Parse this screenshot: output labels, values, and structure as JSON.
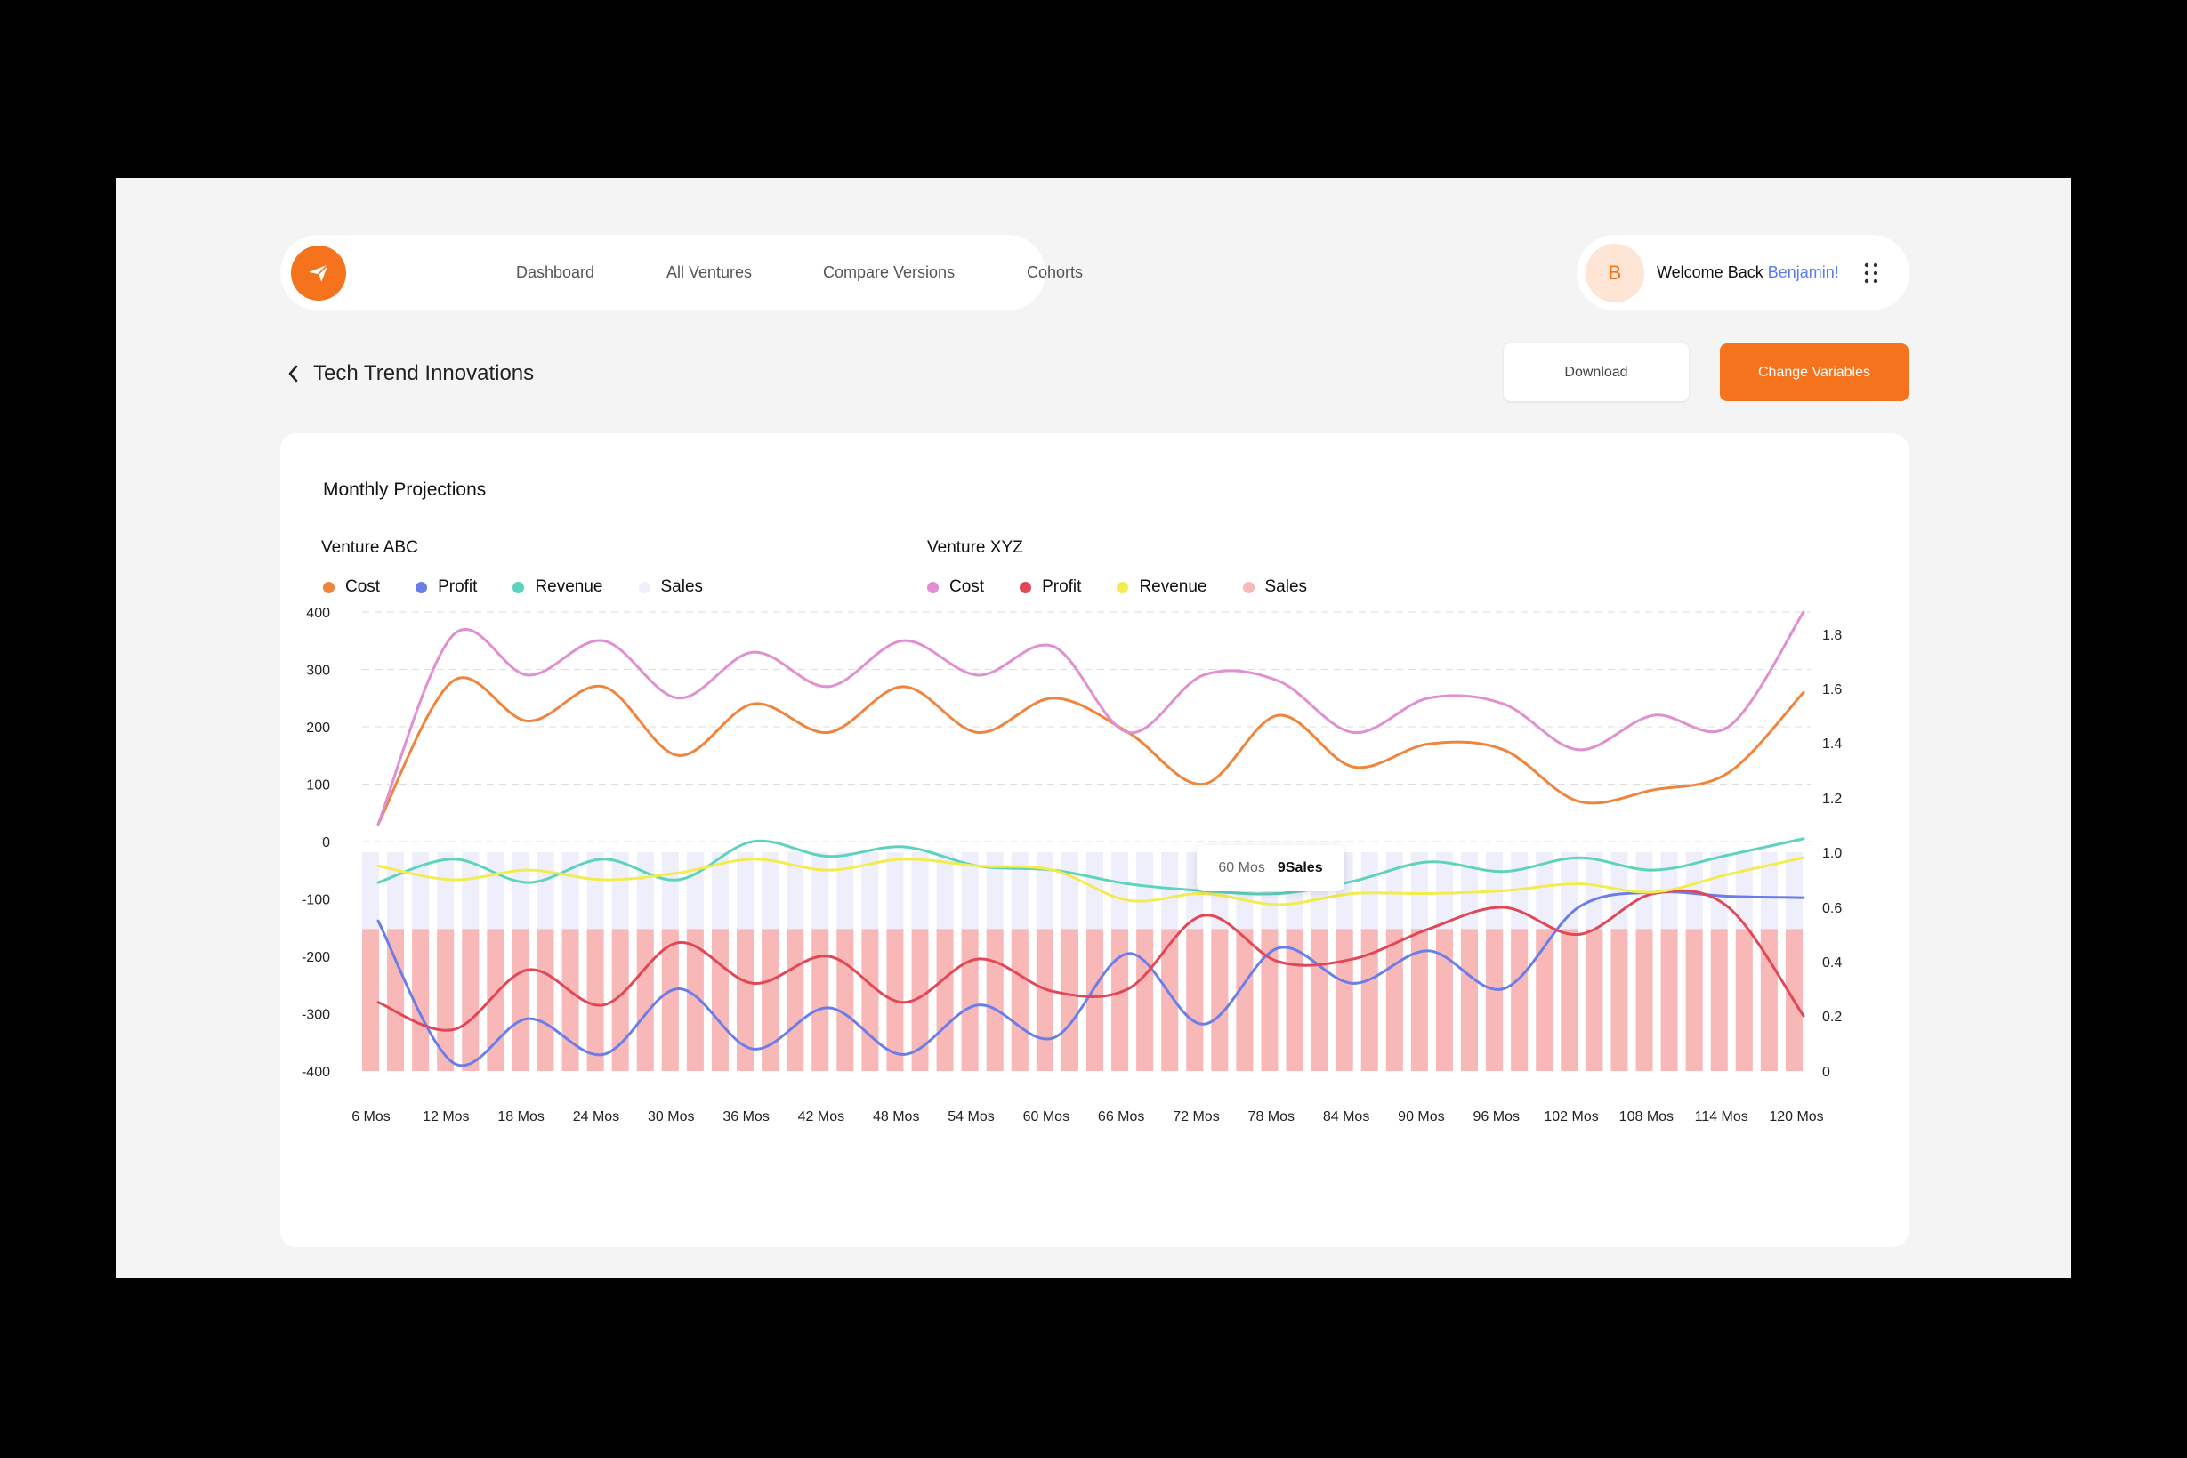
{
  "nav": {
    "items": [
      "Dashboard",
      "All Ventures",
      "Compare Versions",
      "Cohorts"
    ]
  },
  "user": {
    "initial": "B",
    "welcome": "Welcome Back ",
    "name": "Benjamin!"
  },
  "page": {
    "title": "Tech Trend Innovations",
    "download_label": "Download",
    "change_label": "Change Variables"
  },
  "card": {
    "title": "Monthly Projections"
  },
  "colors": {
    "accent": "#f5731c",
    "link": "#5b7cf5"
  },
  "tooltip": {
    "x": "60 Mos",
    "value": "9Sales"
  },
  "chart_data": {
    "type": "line",
    "title": "Monthly Projections",
    "x": [
      "6 Mos",
      "12 Mos",
      "18 Mos",
      "24 Mos",
      "30 Mos",
      "36 Mos",
      "42 Mos",
      "48 Mos",
      "54 Mos",
      "60 Mos",
      "66 Mos",
      "72 Mos",
      "78 Mos",
      "84 Mos",
      "90 Mos",
      "96 Mos",
      "102 Mos",
      "108 Mos",
      "114 Mos",
      "120 Mos"
    ],
    "ylim_left": [
      -400,
      400
    ],
    "yticks_left": [
      "400",
      "300",
      "200",
      "100",
      "0",
      "-100",
      "-200",
      "-300",
      "-400"
    ],
    "ylim_right": [
      0,
      1.8
    ],
    "yticks_right": [
      "1.8",
      "1.6",
      "1.4",
      "1.2",
      "1.0",
      "0.6",
      "0.4",
      "0.2",
      "0"
    ],
    "grid": "dashed horizontal, upper region",
    "groups": [
      {
        "name": "Venture ABC",
        "series": [
          {
            "name": "Cost",
            "color": "#f0843c",
            "axis": "left",
            "values": [
              30,
              280,
              210,
              270,
              150,
              240,
              190,
              270,
              190,
              250,
              190,
              100,
              220,
              130,
              170,
              160,
              70,
              90,
              120,
              260
            ]
          },
          {
            "name": "Profit",
            "color": "#6b7ee8",
            "axis": "right",
            "values": [
              0.55,
              0.03,
              0.19,
              0.06,
              0.3,
              0.08,
              0.23,
              0.06,
              0.24,
              0.12,
              0.43,
              0.17,
              0.45,
              0.32,
              0.44,
              0.3,
              0.6,
              0.71,
              0.68,
              0.67
            ]
          },
          {
            "name": "Revenue",
            "color": "#5ed3bc",
            "axis": "right",
            "values": [
              0.78,
              0.95,
              0.78,
              0.95,
              0.8,
              1.04,
              0.97,
              1.02,
              0.9,
              0.87,
              0.77,
              0.72,
              0.7,
              0.79,
              0.93,
              0.86,
              0.96,
              0.87,
              0.98,
              1.05
            ]
          },
          {
            "name": "Sales",
            "color": "#eeeffb",
            "axis": "right",
            "values": [
              0.8,
              0.8,
              0.8,
              0.8,
              0.8,
              0.8,
              0.8,
              0.8,
              0.8,
              0.8,
              0.8,
              0.8,
              0.8,
              0.8,
              0.8,
              0.8,
              0.8,
              0.8,
              0.8,
              0.8
            ]
          }
        ]
      },
      {
        "name": "Venture XYZ",
        "series": [
          {
            "name": "Cost",
            "color": "#e08fd0",
            "axis": "left",
            "values": [
              30,
              360,
              290,
              350,
              250,
              330,
              270,
              350,
              290,
              340,
              190,
              290,
              280,
              190,
              250,
              240,
              160,
              220,
              200,
              400
            ]
          },
          {
            "name": "Profit",
            "color": "#e14856",
            "axis": "right",
            "values": [
              0.25,
              0.15,
              0.37,
              0.24,
              0.47,
              0.32,
              0.42,
              0.25,
              0.41,
              0.29,
              0.3,
              0.57,
              0.4,
              0.41,
              0.52,
              0.6,
              0.5,
              0.7,
              0.6,
              0.2
            ]
          },
          {
            "name": "Revenue",
            "color": "#f2ec4e",
            "axis": "right",
            "values": [
              0.9,
              0.8,
              0.87,
              0.8,
              0.85,
              0.95,
              0.87,
              0.95,
              0.9,
              0.87,
              0.65,
              0.7,
              0.62,
              0.7,
              0.7,
              0.72,
              0.77,
              0.71,
              0.84,
              0.96
            ]
          },
          {
            "name": "Sales",
            "color": "#f8b8b8",
            "axis": "right",
            "values": [
              0.52,
              0.52,
              0.52,
              0.52,
              0.52,
              0.52,
              0.52,
              0.52,
              0.52,
              0.52,
              0.52,
              0.52,
              0.52,
              0.52,
              0.52,
              0.52,
              0.52,
              0.52,
              0.52,
              0.52
            ]
          }
        ]
      }
    ]
  }
}
